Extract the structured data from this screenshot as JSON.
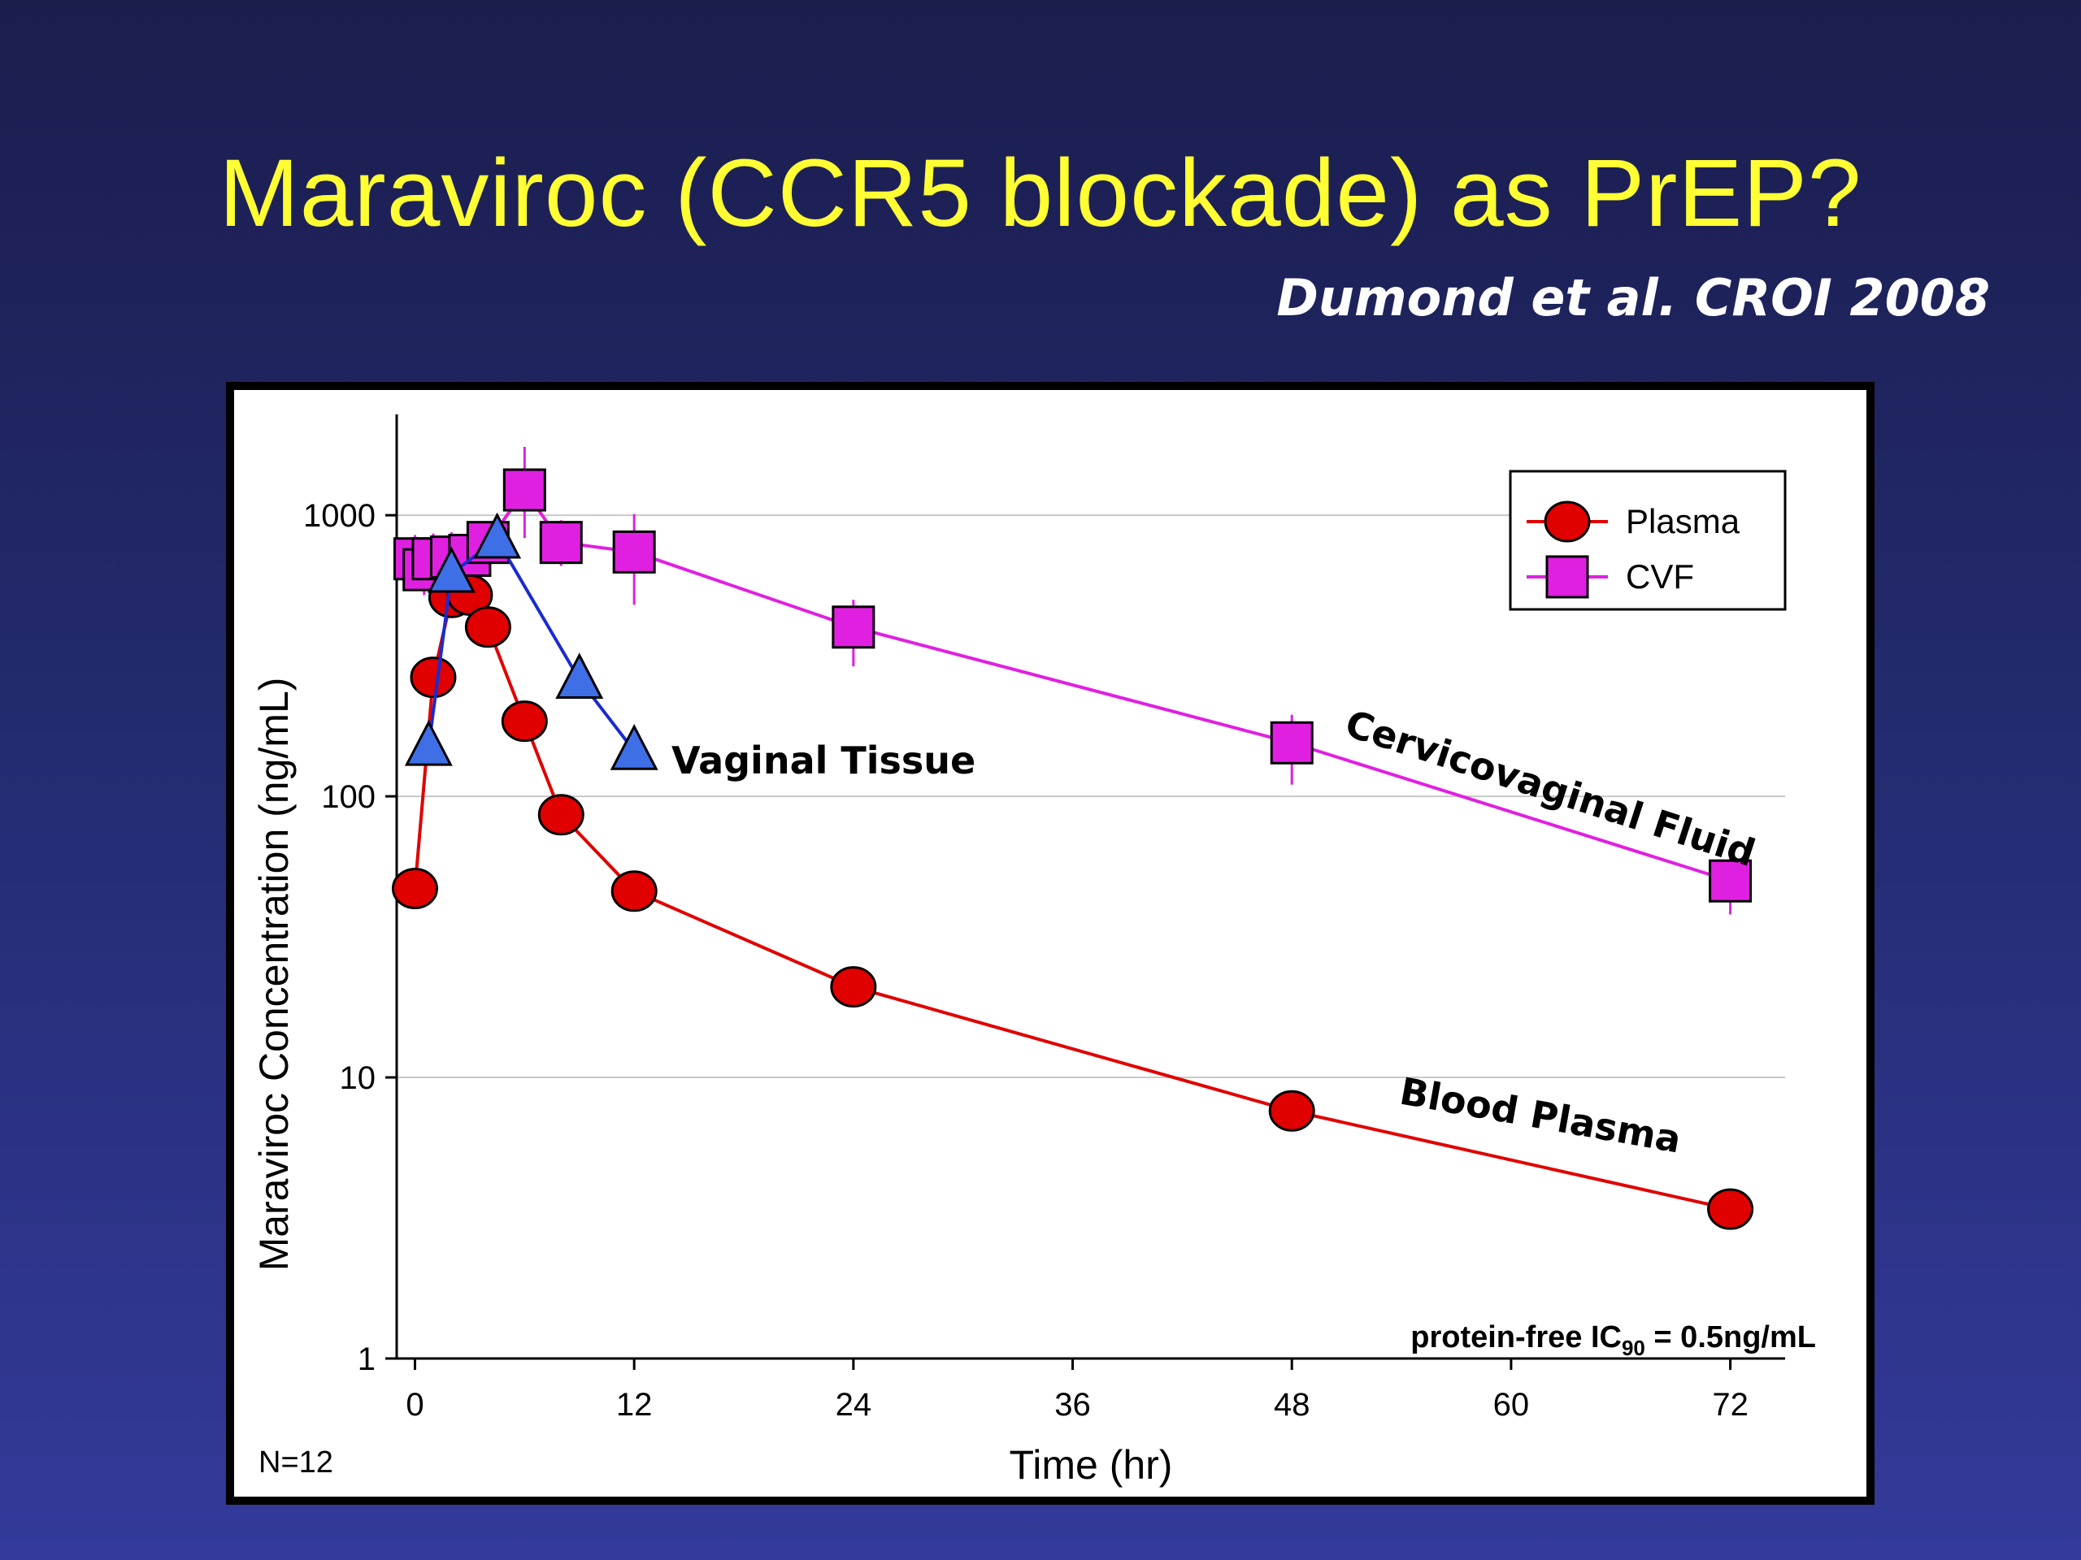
{
  "slide": {
    "title": "Maraviroc (CCR5 blockade) as PrEP?",
    "citation": "Dumond et al. CROI 2008"
  },
  "colors": {
    "background": "#232a6e",
    "title": "#ffff33",
    "plasma": "#e00000",
    "cvf": "#e020e0",
    "vaginal_tissue": "#3f6fe6",
    "vaginal_tissue_line": "#1a2bd0"
  },
  "chart_data": {
    "type": "line",
    "xlabel": "Time (hr)",
    "ylabel": "Maraviroc Concentration (ng/mL)",
    "xlim": [
      -1,
      75
    ],
    "ylim": [
      1,
      2000
    ],
    "yscale": "log",
    "xticks": [
      0,
      12,
      24,
      36,
      48,
      60,
      72
    ],
    "yticks": [
      1,
      10,
      100,
      1000
    ],
    "ytick_labels": [
      "1",
      "10",
      "100",
      "1000"
    ],
    "grid": "horizontal",
    "legend": {
      "position": "top-right",
      "entries": [
        {
          "label": "Plasma",
          "marker": "circle",
          "color": "#e00000"
        },
        {
          "label": "CVF",
          "marker": "square",
          "color": "#e020e0"
        }
      ]
    },
    "series": [
      {
        "name": "Plasma",
        "marker": "circle",
        "color": "#e00000",
        "x": [
          0,
          1,
          2,
          3,
          4,
          6,
          8,
          12,
          24,
          48,
          72
        ],
        "y": [
          47,
          265,
          510,
          520,
          400,
          185,
          86,
          46,
          21,
          7.6,
          3.4
        ]
      },
      {
        "name": "CVF",
        "marker": "square",
        "color": "#e020e0",
        "x": [
          0,
          0.5,
          1,
          2,
          3,
          4,
          6,
          8,
          12,
          24,
          48,
          72
        ],
        "y": [
          700,
          640,
          700,
          710,
          720,
          800,
          1230,
          800,
          740,
          400,
          155,
          50
        ],
        "error_upper": [
          850,
          790,
          860,
          870,
          880,
          940,
          1750,
          960,
          1010,
          500,
          195,
          63
        ],
        "error_lower": [
          580,
          520,
          560,
          570,
          560,
          640,
          830,
          660,
          480,
          290,
          110,
          38
        ]
      },
      {
        "marker": "triangle",
        "color": "#3f6fe6",
        "x": [
          0.75,
          2,
          4.5,
          9,
          12
        ],
        "y": [
          150,
          620,
          820,
          260,
          145
        ]
      }
    ],
    "annotations": [
      {
        "text": "Vaginal Tissue",
        "x": 13.5,
        "y": 140
      },
      {
        "text": "Cervicovaginal Fluid",
        "x": 49.5,
        "y": 88
      },
      {
        "text": "Blood Plasma",
        "x": 52,
        "y": 7.5
      },
      {
        "text_main": "protein-free IC",
        "text_sub": "90",
        "text_tail": " = 0.5ng/mL"
      },
      {
        "text": "N=12"
      }
    ]
  }
}
